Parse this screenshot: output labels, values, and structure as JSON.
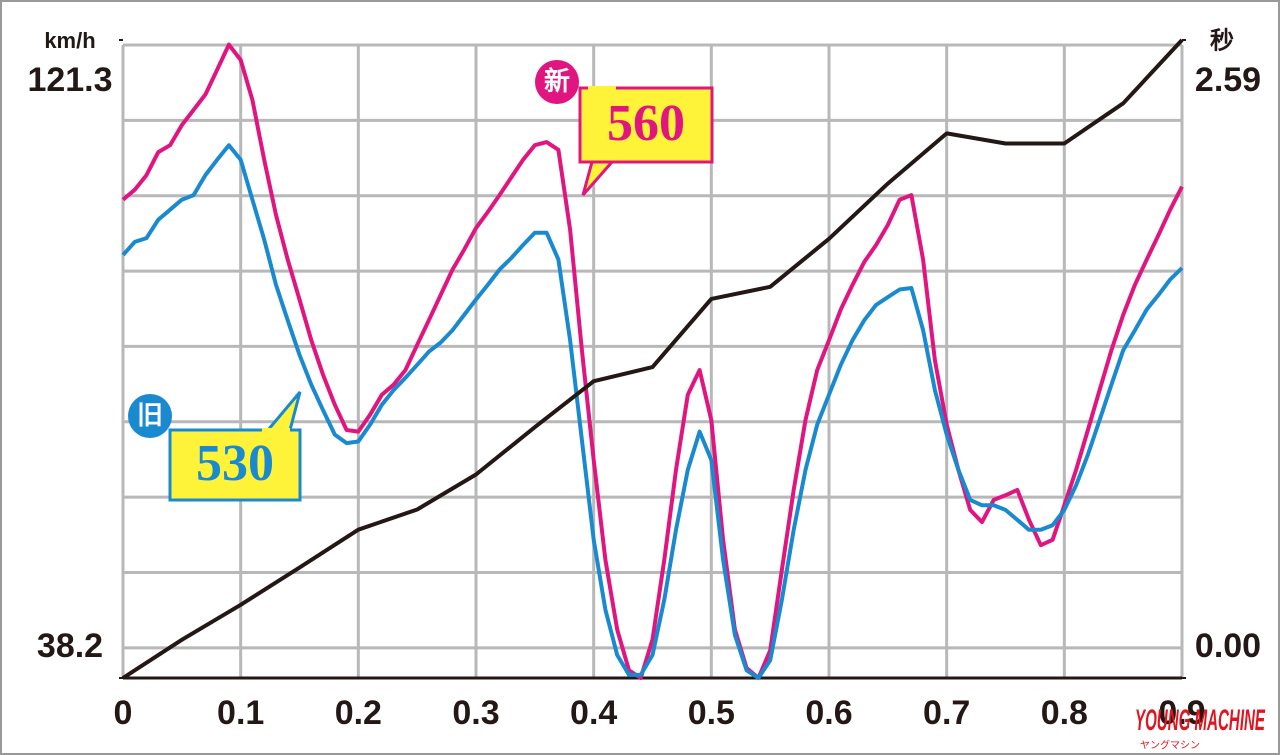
{
  "chart_data": {
    "type": "line",
    "y_axis_label": "km/h",
    "y2_axis_label": "秒",
    "x": [
      0,
      0.01,
      0.02,
      0.03,
      0.04,
      0.05,
      0.06,
      0.07,
      0.08,
      0.09,
      0.1,
      0.11,
      0.12,
      0.13,
      0.14,
      0.15,
      0.16,
      0.17,
      0.18,
      0.19,
      0.2,
      0.21,
      0.22,
      0.23,
      0.24,
      0.25,
      0.26,
      0.27,
      0.28,
      0.29,
      0.3,
      0.31,
      0.32,
      0.33,
      0.34,
      0.35,
      0.36,
      0.37,
      0.38,
      0.39,
      0.4,
      0.41,
      0.42,
      0.43,
      0.44,
      0.45,
      0.46,
      0.47,
      0.48,
      0.49,
      0.5,
      0.51,
      0.52,
      0.53,
      0.54,
      0.55,
      0.56,
      0.57,
      0.58,
      0.59,
      0.6,
      0.61,
      0.62,
      0.63,
      0.64,
      0.65,
      0.66,
      0.67,
      0.68,
      0.69,
      0.7,
      0.71,
      0.72,
      0.73,
      0.74,
      0.75,
      0.76,
      0.77,
      0.78,
      0.79,
      0.8,
      0.81,
      0.82,
      0.83,
      0.84,
      0.85,
      0.86,
      0.87,
      0.88,
      0.89,
      0.9
    ],
    "series": [
      {
        "name": "560",
        "badge": "新",
        "color": "#e0157f",
        "values": [
          100.5,
          101.8,
          103.7,
          106.7,
          107.6,
          110.2,
          112.2,
          114.2,
          117.4,
          120.7,
          118.7,
          113.5,
          105.7,
          98.5,
          92.7,
          87.5,
          82.2,
          77.7,
          73.8,
          70.5,
          70.3,
          72.5,
          75.1,
          76.4,
          78.3,
          81.6,
          84.8,
          88.1,
          91.4,
          94.0,
          96.8,
          98.9,
          101.1,
          103.4,
          105.7,
          107.6,
          108.0,
          107.0,
          96.6,
          80.9,
          66.6,
          53.6,
          44.5,
          39.2,
          38.2,
          43.2,
          53.6,
          65.3,
          75.1,
          78.3,
          71.8,
          56.2,
          44.5,
          39.5,
          38.2,
          41.8,
          52.3,
          62.7,
          71.8,
          78.3,
          82.2,
          86.2,
          89.4,
          92.4,
          94.6,
          97.2,
          100.5,
          101.1,
          92.7,
          79.6,
          71.2,
          65.3,
          60.1,
          58.5,
          61.4,
          62.0,
          62.7,
          58.8,
          55.5,
          56.2,
          60.7,
          65.3,
          70.5,
          75.7,
          80.9,
          85.5,
          89.4,
          92.7,
          95.9,
          99.2,
          102.2
        ]
      },
      {
        "name": "530",
        "badge": "旧",
        "color": "#1a8ad0",
        "values": [
          93.3,
          95.0,
          95.5,
          97.9,
          99.2,
          100.5,
          101.1,
          103.7,
          105.7,
          107.6,
          105.7,
          100.5,
          95.3,
          89.4,
          84.8,
          80.3,
          76.4,
          73.1,
          69.9,
          68.8,
          69.0,
          71.2,
          73.8,
          75.7,
          77.3,
          79.0,
          80.7,
          81.9,
          83.5,
          85.5,
          87.5,
          89.4,
          91.4,
          92.9,
          94.6,
          96.2,
          96.2,
          92.7,
          82.2,
          69.2,
          56.2,
          47.1,
          41.2,
          38.6,
          38.6,
          41.2,
          48.4,
          57.5,
          65.3,
          70.3,
          66.6,
          53.6,
          43.8,
          39.2,
          38.2,
          40.5,
          48.4,
          57.5,
          65.3,
          71.2,
          75.1,
          79.0,
          82.2,
          84.8,
          86.8,
          87.8,
          88.8,
          89.0,
          83.5,
          75.7,
          69.9,
          65.3,
          61.4,
          60.7,
          60.7,
          60.1,
          58.8,
          57.5,
          57.5,
          58.1,
          60.1,
          63.3,
          67.3,
          71.8,
          76.4,
          80.9,
          83.5,
          86.2,
          88.1,
          90.1,
          91.6
        ]
      },
      {
        "color": "#231815",
        "axis": "y2",
        "x": [
          0,
          0.05,
          0.1,
          0.15,
          0.2,
          0.25,
          0.3,
          0.35,
          0.4,
          0.45,
          0.5,
          0.55,
          0.6,
          0.65,
          0.7,
          0.75,
          0.8,
          0.85,
          0.9
        ],
        "values": [
          0,
          0.155,
          0.297,
          0.448,
          0.602,
          0.684,
          0.826,
          1.018,
          1.205,
          1.262,
          1.539,
          1.588,
          1.783,
          2.007,
          2.211,
          2.17,
          2.17,
          2.333,
          2.59
        ]
      }
    ],
    "xlim": [
      0,
      0.9
    ],
    "xticks": [
      0,
      0.1,
      0.2,
      0.3,
      0.4,
      0.5,
      0.6,
      0.7,
      0.8,
      0.9
    ],
    "ylim": [
      38.2,
      121.3
    ],
    "yticks": [
      38.2,
      121.3
    ],
    "y2lim": [
      0,
      2.59
    ],
    "y2ticks": [
      {
        "value": 0,
        "label": "0.00"
      },
      2.59
    ],
    "grid": true,
    "logo": "YOUNG MACHINE",
    "logo_sub": "ヤングマシン"
  }
}
